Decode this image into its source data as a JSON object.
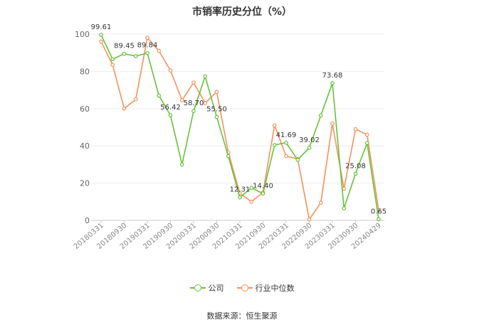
{
  "title": "市销率历史分位（%）",
  "source": "数据来源：恒生聚源",
  "chart_data": {
    "type": "line",
    "title": "市销率历史分位（%）",
    "ylim": [
      0,
      100
    ],
    "yticks": [
      0,
      20,
      40,
      60,
      80,
      100
    ],
    "grid": true,
    "legend_position": "bottom",
    "x_tick_labels": [
      "20180331",
      "20180930",
      "20190331",
      "20190930",
      "20200331",
      "20200930",
      "20210331",
      "20210930",
      "20220331",
      "20220930",
      "20230331",
      "20230930",
      "20240429"
    ],
    "series": [
      {
        "name": "公司",
        "color": "#67c23a",
        "values": [
          99.61,
          86.5,
          89.45,
          88.2,
          89.84,
          67.0,
          56.42,
          30.0,
          58.7,
          77.3,
          55.5,
          34.5,
          12.31,
          17.5,
          14.4,
          40.5,
          41.69,
          32.5,
          39.02,
          56.3,
          73.68,
          6.5,
          25.08,
          41.5,
          0.65
        ],
        "labels": {
          "0": "99.61",
          "2": "89.45",
          "4": "89.84",
          "6": "56.42",
          "8": "58.70",
          "10": "55.50",
          "12": "12.31",
          "14": "14.40",
          "16": "41.69",
          "18": "39.02",
          "20": "73.68",
          "22": "25.08",
          "24": "0.65"
        }
      },
      {
        "name": "行业中位数",
        "color": "#f4915e",
        "values": [
          96.0,
          83.5,
          60.0,
          65.0,
          98.0,
          91.0,
          80.5,
          64.5,
          74.0,
          63.0,
          69.0,
          36.5,
          14.5,
          10.0,
          15.0,
          51.0,
          34.5,
          33.0,
          0.5,
          9.5,
          52.0,
          17.0,
          49.0,
          46.0,
          5.5
        ]
      }
    ]
  }
}
